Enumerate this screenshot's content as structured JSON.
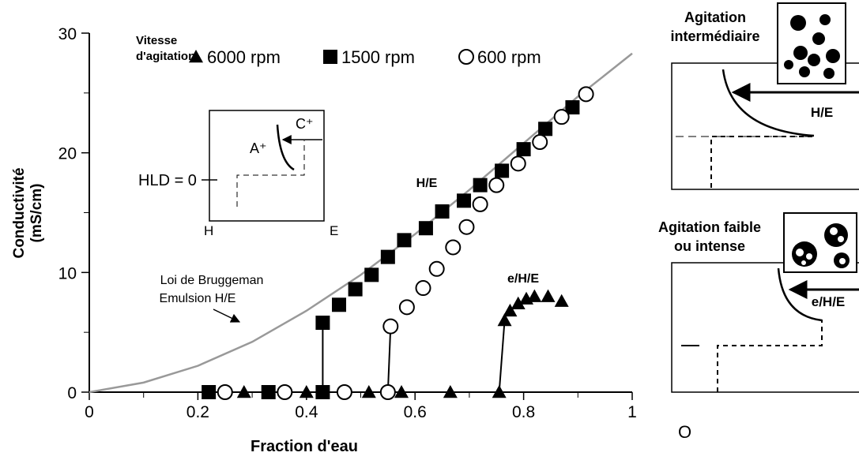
{
  "chart_data": {
    "type": "scatter",
    "xlabel": "Fraction d'eau",
    "ylabel": [
      "Conductivité",
      "(mS/cm)"
    ],
    "xlim": [
      0,
      1
    ],
    "ylim": [
      0,
      30
    ],
    "xticks": [
      0,
      0.2,
      0.4,
      0.6,
      0.8,
      1
    ],
    "yticks": [
      0,
      10,
      20,
      30
    ],
    "xminor_ticks": [
      0.1,
      0.3,
      0.5,
      0.7,
      0.9
    ],
    "yminor_ticks": [
      5,
      15,
      25
    ],
    "legend_title": [
      "Vitesse",
      "d'agitation"
    ],
    "series": [
      {
        "name": "6000 rpm",
        "color": "#000000",
        "marker": "triangle",
        "x": [
          0.285,
          0.4,
          0.515,
          0.575,
          0.665,
          0.755,
          0.765,
          0.775,
          0.79,
          0.805,
          0.82,
          0.845,
          0.87
        ],
        "values": [
          0,
          0,
          0,
          0,
          0,
          0,
          6.0,
          6.8,
          7.4,
          7.8,
          8.0,
          8.0,
          7.6
        ]
      },
      {
        "name": "1500 rpm",
        "color": "#000000",
        "marker": "square",
        "x": [
          0.22,
          0.33,
          0.43,
          0.43,
          0.46,
          0.49,
          0.52,
          0.55,
          0.58,
          0.62,
          0.65,
          0.69,
          0.72,
          0.76,
          0.8,
          0.84,
          0.89
        ],
        "values": [
          0,
          0,
          0,
          5.8,
          7.3,
          8.6,
          9.8,
          11.3,
          12.7,
          13.7,
          15.1,
          16.0,
          17.3,
          18.5,
          20.3,
          22.0,
          23.8
        ]
      },
      {
        "name": "600 rpm",
        "color": "#000000",
        "marker": "circle",
        "x": [
          0.25,
          0.36,
          0.47,
          0.55,
          0.555,
          0.585,
          0.615,
          0.64,
          0.67,
          0.695,
          0.72,
          0.75,
          0.79,
          0.83,
          0.87,
          0.915
        ],
        "values": [
          0,
          0,
          0,
          0,
          5.5,
          7.1,
          8.7,
          10.3,
          12.1,
          13.8,
          15.7,
          17.3,
          19.1,
          20.9,
          23.0,
          24.9
        ]
      }
    ],
    "curve": {
      "color": "#999999",
      "x": [
        0,
        0.1,
        0.2,
        0.3,
        0.4,
        0.5,
        0.6,
        0.7,
        0.8,
        0.9,
        1
      ],
      "values": [
        0,
        0.8,
        2.2,
        4.2,
        6.8,
        9.8,
        13.2,
        16.9,
        20.8,
        24.7,
        28.3
      ]
    },
    "annotations": {
      "curve_label": [
        "Loi de Bruggeman",
        "Emulsion H/E"
      ],
      "he": "H/E",
      "ehe": "e/H/E"
    }
  },
  "inset": {
    "hld": "HLD = 0",
    "h": "H",
    "e": "E",
    "a": "A⁺",
    "c": "C⁺"
  },
  "side_panels": [
    {
      "title": [
        "Agitation",
        "intermédiaire"
      ],
      "label": "H/E"
    },
    {
      "title": [
        "Agitation faible",
        "ou intense"
      ],
      "label": "e/H/E"
    }
  ],
  "origin_label": "O"
}
